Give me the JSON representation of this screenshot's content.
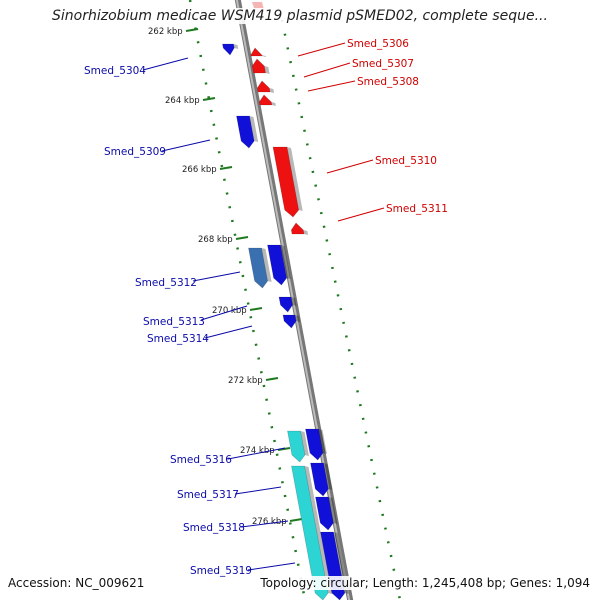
{
  "title": "Sinorhizobium medicae WSM419 plasmid pSMED02, complete seque...",
  "colors": {
    "forward_gene": "#1010d8",
    "reverse_gene": "#ee1111",
    "highlight_gene": "#2cd4d4",
    "steel_gene": "#3a6fb0",
    "backbone": "#888888",
    "tick": "#1f7a1f",
    "forward_label": "#0a0aa8",
    "reverse_label": "#d00000"
  },
  "ticks": [
    {
      "label": "262 kbp"
    },
    {
      "label": "264 kbp"
    },
    {
      "label": "266 kbp"
    },
    {
      "label": "268 kbp"
    },
    {
      "label": "270 kbp"
    },
    {
      "label": "272 kbp"
    },
    {
      "label": "274 kbp"
    },
    {
      "label": "276 kbp"
    }
  ],
  "genes_forward": [
    {
      "label": "Smed_5304"
    },
    {
      "label": "Smed_5309"
    },
    {
      "label": "Smed_5312"
    },
    {
      "label": "Smed_5313"
    },
    {
      "label": "Smed_5314"
    },
    {
      "label": "Smed_5316"
    },
    {
      "label": "Smed_5317"
    },
    {
      "label": "Smed_5318"
    },
    {
      "label": "Smed_5319"
    }
  ],
  "genes_reverse": [
    {
      "label": "Smed_5306"
    },
    {
      "label": "Smed_5307"
    },
    {
      "label": "Smed_5308"
    },
    {
      "label": "Smed_5310"
    },
    {
      "label": "Smed_5311"
    }
  ],
  "footer": {
    "accession": "Accession: NC_009621",
    "topology": "Topology: circular; Length: 1,245,408 bp; Genes: 1,094"
  }
}
